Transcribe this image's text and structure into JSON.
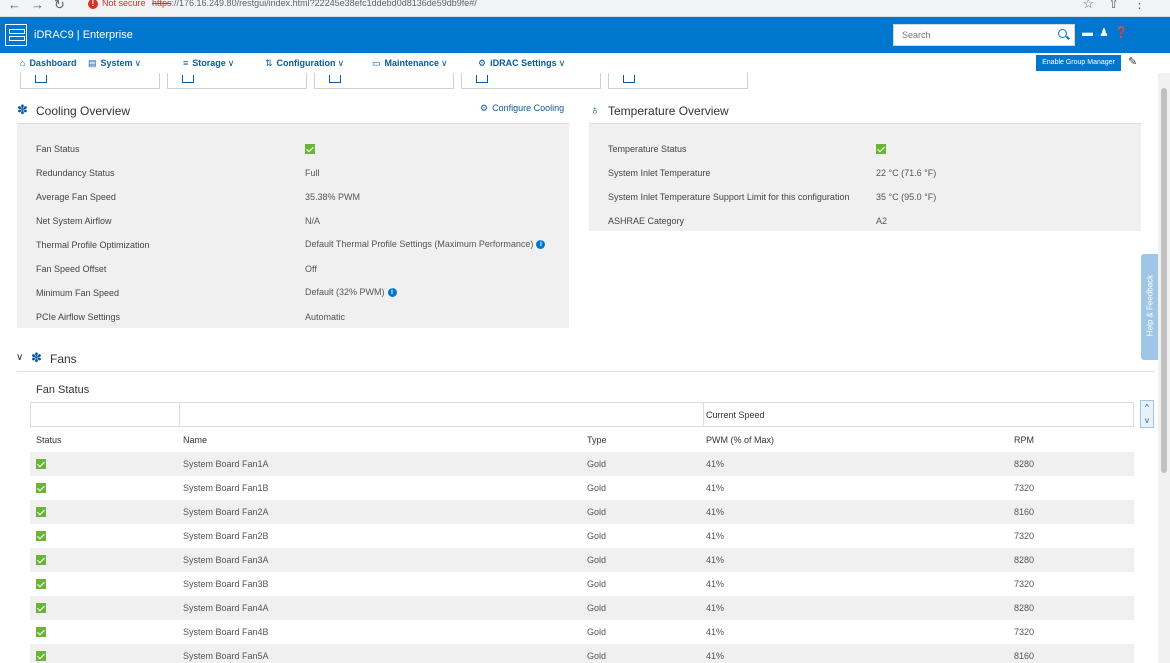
{
  "browser": {
    "security_label": "Not secure",
    "url_scheme": "https",
    "url_rest": "://176.16.249.80/restgui/index.html?22245e38efc1ddebd0d8136de59db9fe#/"
  },
  "header": {
    "title": "iDRAC9 | Enterprise",
    "search_placeholder": "Search"
  },
  "nav": {
    "items": [
      {
        "label": "Dashboard"
      },
      {
        "label": "System"
      },
      {
        "label": "Storage"
      },
      {
        "label": "Configuration"
      },
      {
        "label": "Maintenance"
      },
      {
        "label": "iDRAC Settings"
      }
    ],
    "group_manager_label": "Enable Group Manager"
  },
  "cooling": {
    "title": "Cooling Overview",
    "configure_label": "Configure Cooling",
    "rows": [
      {
        "label": "Fan Status",
        "value": ""
      },
      {
        "label": "Redundancy Status",
        "value": "Full"
      },
      {
        "label": "Average Fan Speed",
        "value": "35.38% PWM"
      },
      {
        "label": "Net System Airflow",
        "value": "N/A"
      },
      {
        "label": "Thermal Profile Optimization",
        "value": "Default Thermal Profile Settings (Maximum Performance)"
      },
      {
        "label": "Fan Speed Offset",
        "value": "Off"
      },
      {
        "label": "Minimum Fan Speed",
        "value": "Default (32% PWM)"
      },
      {
        "label": "PCIe Airflow Settings",
        "value": "Automatic"
      }
    ]
  },
  "temperature": {
    "title": "Temperature Overview",
    "rows": [
      {
        "label": "Temperature Status",
        "value": ""
      },
      {
        "label": "System Inlet Temperature",
        "value": "22 °C (71.6 °F)"
      },
      {
        "label": "System Inlet Temperature Support Limit for this configuration",
        "value": "35 °C (95.0 °F)"
      },
      {
        "label": "ASHRAE Category",
        "value": "A2"
      }
    ]
  },
  "fans": {
    "section_title": "Fans",
    "table_title": "Fan Status",
    "group_header": "Current Speed",
    "columns": [
      "Status",
      "Name",
      "Type",
      "PWM (% of Max)",
      "RPM"
    ],
    "rows": [
      {
        "name": "System Board Fan1A",
        "type": "Gold",
        "pwm": "41%",
        "rpm": "8280"
      },
      {
        "name": "System Board Fan1B",
        "type": "Gold",
        "pwm": "41%",
        "rpm": "7320"
      },
      {
        "name": "System Board Fan2A",
        "type": "Gold",
        "pwm": "41%",
        "rpm": "8160"
      },
      {
        "name": "System Board Fan2B",
        "type": "Gold",
        "pwm": "41%",
        "rpm": "7320"
      },
      {
        "name": "System Board Fan3A",
        "type": "Gold",
        "pwm": "41%",
        "rpm": "8280"
      },
      {
        "name": "System Board Fan3B",
        "type": "Gold",
        "pwm": "41%",
        "rpm": "7320"
      },
      {
        "name": "System Board Fan4A",
        "type": "Gold",
        "pwm": "41%",
        "rpm": "8280"
      },
      {
        "name": "System Board Fan4B",
        "type": "Gold",
        "pwm": "41%",
        "rpm": "7320"
      },
      {
        "name": "System Board Fan5A",
        "type": "Gold",
        "pwm": "41%",
        "rpm": "8160"
      }
    ]
  },
  "feedback_label": "Help & Feedback",
  "colors": {
    "brand": "#0076ce",
    "status_ok": "#6bb43a",
    "link": "#0b5aa0"
  }
}
